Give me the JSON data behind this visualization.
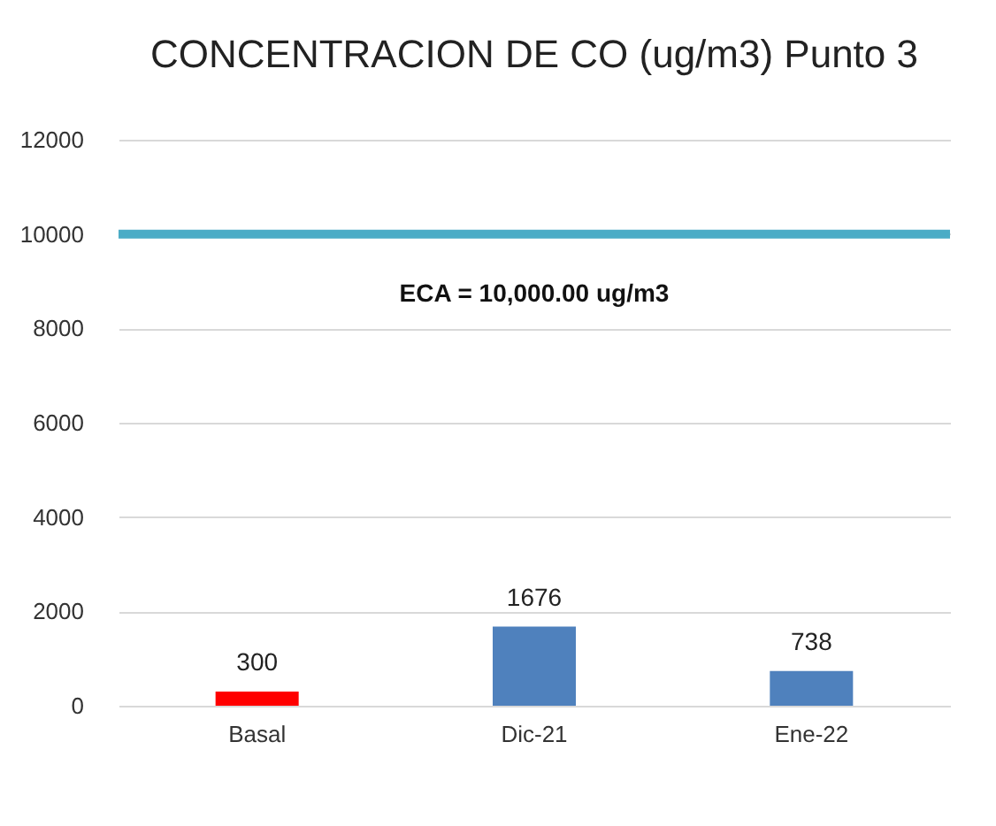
{
  "chart_data": {
    "type": "bar",
    "title": "CONCENTRACION DE CO (ug/m3) Punto 3",
    "categories": [
      "Basal",
      "Dic-21",
      "Ene-22"
    ],
    "values": [
      300,
      1676,
      738
    ],
    "colors": [
      "#ff0000",
      "#4f81bd",
      "#4f81bd"
    ],
    "ylim": [
      0,
      12000
    ],
    "yticks": [
      0,
      2000,
      4000,
      6000,
      8000,
      10000,
      12000
    ],
    "grid": "y",
    "data_labels": true,
    "ref_lines": [
      {
        "axis": "y",
        "value": 10000,
        "label": "ECA = 10,000.00 ug/m3",
        "color": "#4bacc6"
      }
    ]
  }
}
